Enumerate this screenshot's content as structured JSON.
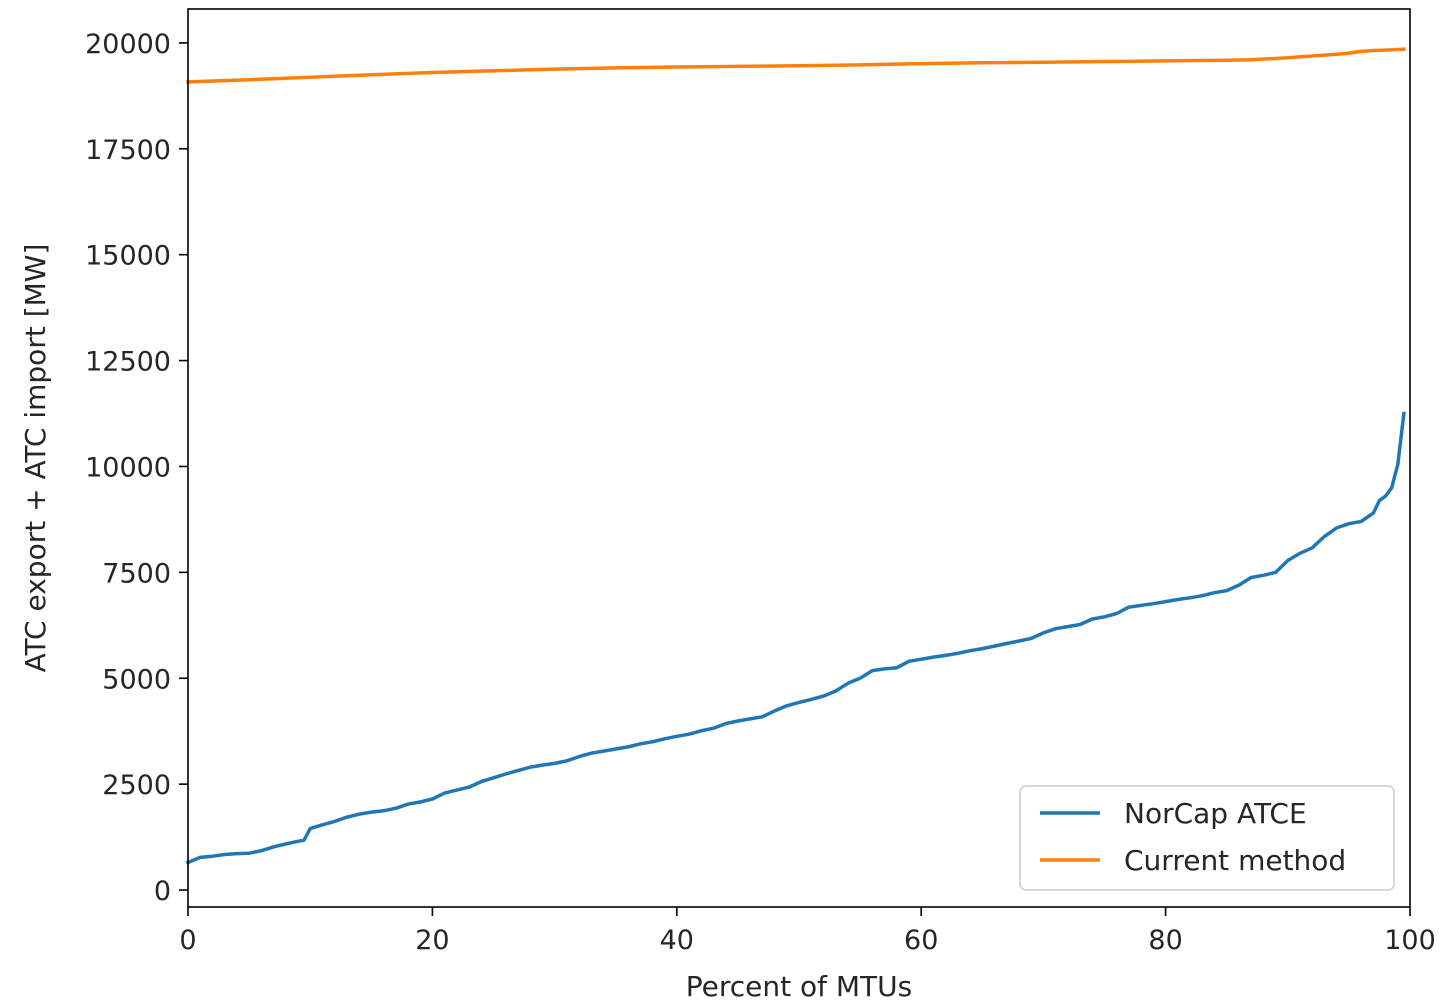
{
  "chart_data": {
    "type": "line",
    "title": "",
    "xlabel": "Percent of MTUs",
    "ylabel": "ATC export + ATC import [MW]",
    "xlim": [
      0,
      100
    ],
    "ylim": [
      -400,
      20800
    ],
    "x_ticks": [
      0,
      20,
      40,
      60,
      80,
      100
    ],
    "x_tick_labels": [
      "0",
      "20",
      "40",
      "60",
      "80",
      "100"
    ],
    "y_ticks": [
      0,
      2500,
      5000,
      7500,
      10000,
      12500,
      15000,
      17500,
      20000
    ],
    "y_tick_labels": [
      "0",
      "2500",
      "5000",
      "7500",
      "10000",
      "12500",
      "15000",
      "17500",
      "20000"
    ],
    "grid": false,
    "legend_position": "lower-right",
    "series": [
      {
        "name": "NorCap ATCE",
        "color": "#1f77b4",
        "x": [
          0,
          1,
          2,
          3,
          4,
          5,
          6,
          7,
          8,
          9,
          9.5,
          10,
          11,
          12,
          13,
          14,
          15,
          16,
          17,
          18,
          19,
          20,
          21,
          22,
          23,
          24,
          25,
          26,
          27,
          28,
          29,
          30,
          31,
          32,
          33,
          34,
          35,
          36,
          37,
          38,
          39,
          40,
          41,
          42,
          43,
          44,
          45,
          46,
          47,
          48,
          49,
          50,
          51,
          52,
          53,
          54,
          55,
          56,
          57,
          58,
          59,
          60,
          61,
          62,
          63,
          64,
          65,
          66,
          67,
          68,
          69,
          70,
          71,
          72,
          73,
          74,
          75,
          76,
          77,
          78,
          79,
          80,
          81,
          82,
          83,
          84,
          85,
          86,
          87,
          88,
          89,
          90,
          91,
          92,
          93,
          94,
          95,
          96,
          97,
          97.5,
          98,
          98.5,
          99,
          99.5
        ],
        "y": [
          650,
          770,
          800,
          840,
          860,
          870,
          930,
          1020,
          1090,
          1150,
          1180,
          1450,
          1540,
          1620,
          1720,
          1790,
          1840,
          1870,
          1930,
          2030,
          2080,
          2150,
          2290,
          2360,
          2430,
          2560,
          2650,
          2740,
          2820,
          2900,
          2950,
          2990,
          3050,
          3150,
          3230,
          3280,
          3330,
          3380,
          3450,
          3500,
          3570,
          3630,
          3680,
          3760,
          3820,
          3930,
          3990,
          4040,
          4090,
          4230,
          4350,
          4430,
          4500,
          4580,
          4700,
          4880,
          5000,
          5180,
          5220,
          5250,
          5400,
          5450,
          5500,
          5540,
          5590,
          5650,
          5700,
          5760,
          5820,
          5880,
          5940,
          6070,
          6170,
          6220,
          6270,
          6400,
          6450,
          6530,
          6680,
          6720,
          6760,
          6810,
          6860,
          6900,
          6950,
          7020,
          7070,
          7200,
          7380,
          7430,
          7500,
          7780,
          7950,
          8080,
          8350,
          8550,
          8650,
          8700,
          8900,
          9200,
          9300,
          9500,
          10050,
          11250
        ]
      },
      {
        "name": "Current method",
        "color": "#ff7f0e",
        "x": [
          0,
          5,
          10,
          15,
          20,
          25,
          30,
          35,
          40,
          45,
          50,
          55,
          60,
          65,
          70,
          75,
          80,
          85,
          87,
          90,
          92,
          94,
          95,
          96,
          97,
          98,
          99.5
        ],
        "y": [
          19080,
          19130,
          19190,
          19250,
          19300,
          19340,
          19380,
          19410,
          19430,
          19445,
          19460,
          19480,
          19510,
          19530,
          19545,
          19560,
          19575,
          19590,
          19600,
          19650,
          19690,
          19730,
          19760,
          19800,
          19820,
          19830,
          19850
        ]
      }
    ]
  }
}
